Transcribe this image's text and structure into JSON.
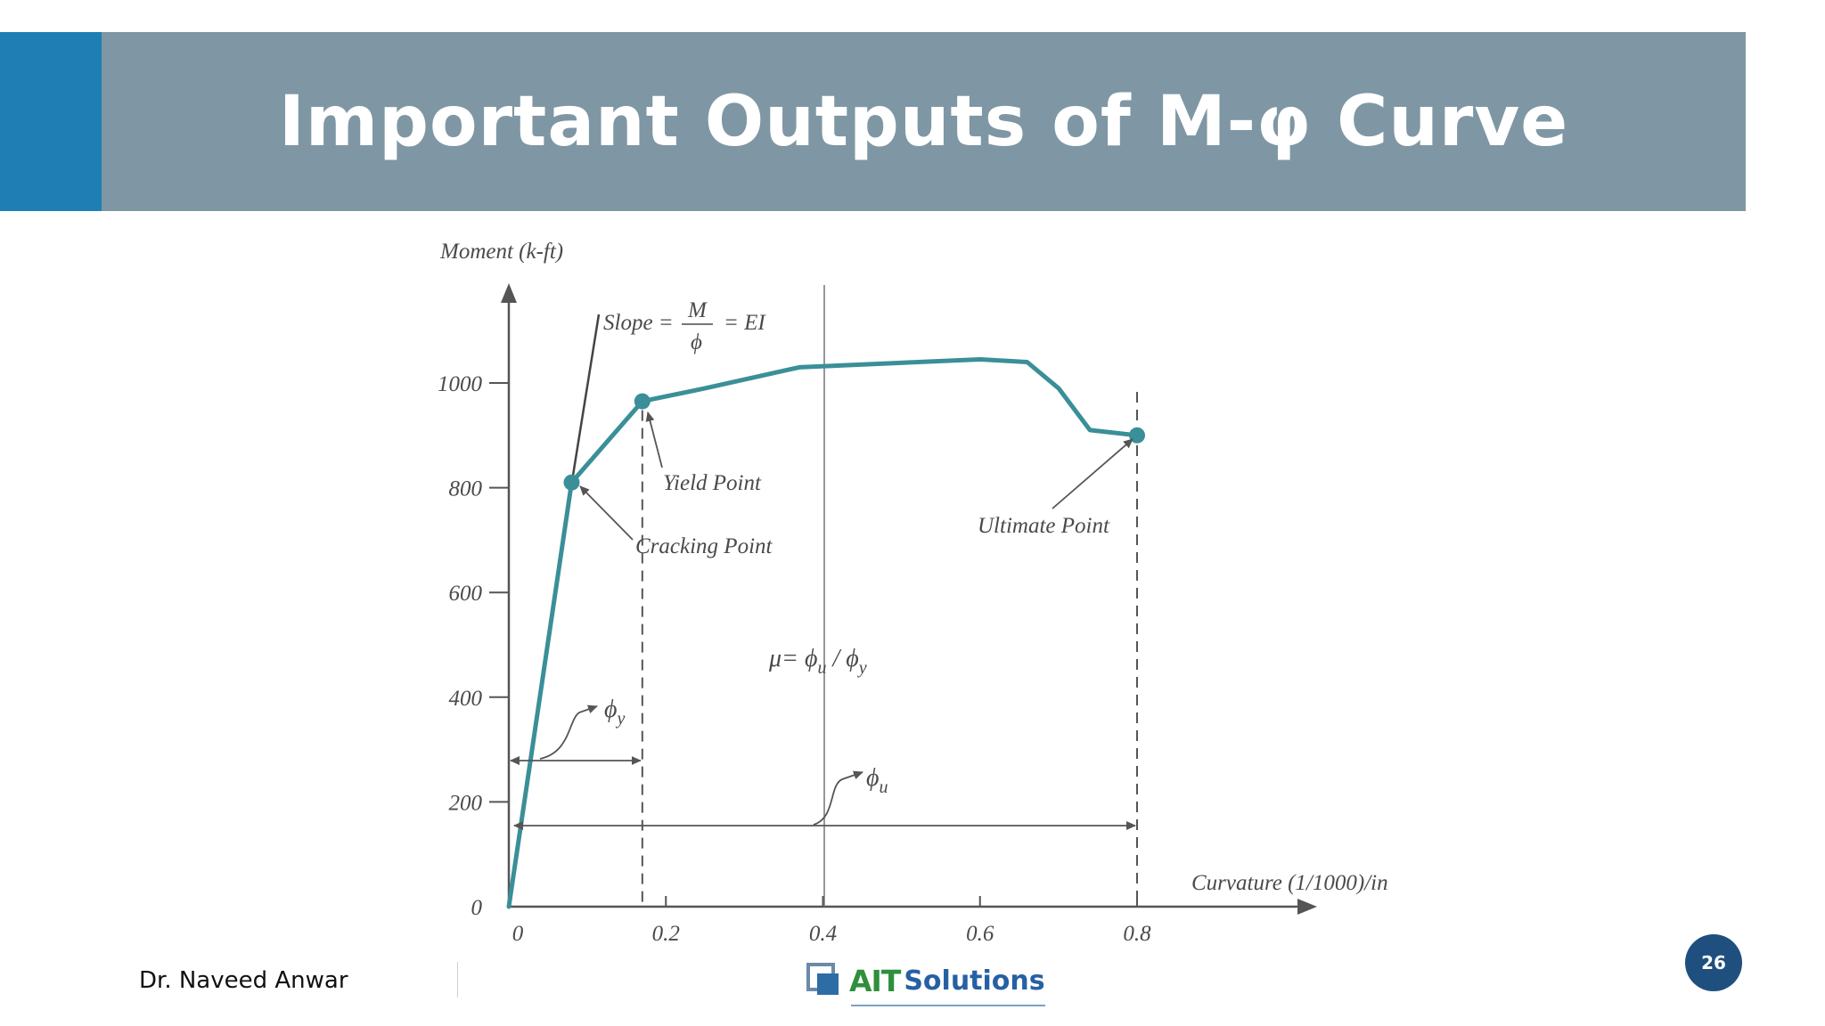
{
  "slide": {
    "title": "Important Outputs of M-φ Curve",
    "author": "Dr. Naveed Anwar",
    "logo_text_1": "AIT",
    "logo_text_2": "Solutions",
    "page_number": "26"
  },
  "colors": {
    "title_bar": "#7f97a4",
    "title_accent": "#1f7fb5",
    "curve": "#3a8f98",
    "axis": "#555555",
    "page_badge": "#1f4f7f"
  },
  "chart_data": {
    "type": "line",
    "title": "",
    "ylabel": "Moment (k-ft)",
    "xlabel": "Curvature (1/1000)/in",
    "xlim": [
      0,
      0.8
    ],
    "ylim": [
      0,
      1000
    ],
    "x_ticks": [
      "0",
      "0.2",
      "0.4",
      "0.6",
      "0.8"
    ],
    "y_ticks": [
      "0",
      "200",
      "400",
      "600",
      "800",
      "1000"
    ],
    "series": [
      {
        "x": [
          0,
          0.08,
          0.17,
          0.25,
          0.37,
          0.6,
          0.66,
          0.7,
          0.74,
          0.8
        ],
        "y": [
          0,
          810,
          965,
          990,
          1030,
          1045,
          1040,
          990,
          910,
          900
        ]
      }
    ],
    "points": [
      {
        "label": "Cracking Point",
        "x": 0.08,
        "y": 810
      },
      {
        "label": "Yield Point",
        "x": 0.17,
        "y": 965
      },
      {
        "label": "Ultimate Point",
        "x": 0.8,
        "y": 900
      }
    ],
    "annotations": {
      "slope_prefix": "Slope =",
      "slope_num": "M",
      "slope_den": "ϕ",
      "slope_suffix": "= EI",
      "ductility_prefix": "μ= ϕ",
      "ductility_sub1": "u",
      "ductility_mid": " / ϕ",
      "ductility_sub2": "y",
      "phi_y": "ϕ",
      "phi_y_sub": "y",
      "phi_u": "ϕ",
      "phi_u_sub": "u"
    }
  }
}
